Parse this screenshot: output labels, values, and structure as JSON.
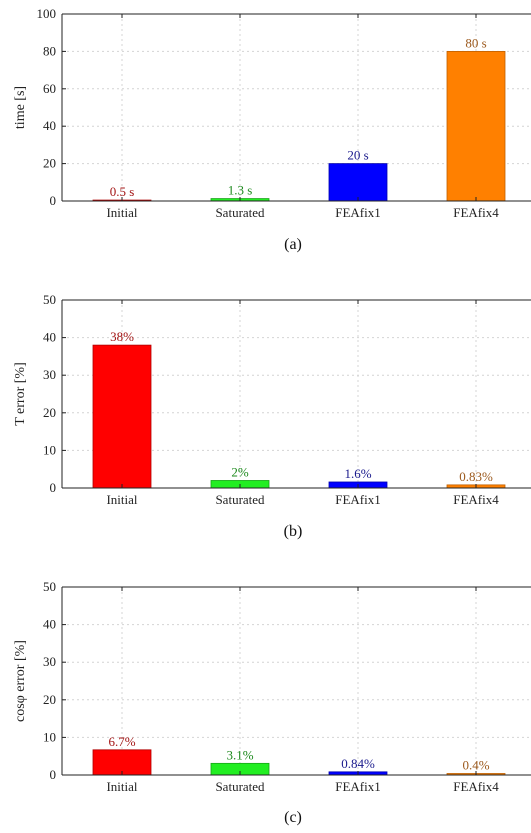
{
  "chart_data": [
    {
      "type": "bar",
      "categories": [
        "Initial",
        "Saturated",
        "FEAfix1",
        "FEAfix4"
      ],
      "values": [
        0.5,
        1.3,
        20,
        80
      ],
      "data_labels": [
        "0.5 s",
        "1.3 s",
        "20 s",
        "80 s"
      ],
      "ylabel": "time [s]",
      "ylim": [
        0,
        100
      ],
      "yticks": [
        "0",
        "20",
        "40",
        "60",
        "80",
        "100"
      ],
      "caption": "(a)",
      "grid": true
    },
    {
      "type": "bar",
      "categories": [
        "Initial",
        "Saturated",
        "FEAfix1",
        "FEAfix4"
      ],
      "values": [
        38,
        2,
        1.6,
        0.83
      ],
      "data_labels": [
        "38%",
        "2%",
        "1.6%",
        "0.83%"
      ],
      "ylabel": "T error [%]",
      "ylim": [
        0,
        50
      ],
      "yticks": [
        "0",
        "10",
        "20",
        "30",
        "40",
        "50"
      ],
      "caption": "(b)",
      "grid": true
    },
    {
      "type": "bar",
      "categories": [
        "Initial",
        "Saturated",
        "FEAfix1",
        "FEAfix4"
      ],
      "values": [
        6.7,
        3.1,
        0.84,
        0.4
      ],
      "data_labels": [
        "6.7%",
        "3.1%",
        "0.84%",
        "0.4%"
      ],
      "ylabel": "cosφ error [%]",
      "ylim": [
        0,
        50
      ],
      "yticks": [
        "0",
        "10",
        "20",
        "30",
        "40",
        "50"
      ],
      "caption": "(c)",
      "grid": true
    }
  ],
  "colors": {
    "bars": [
      "#ff0000",
      "#22ee22",
      "#0000ff",
      "#ff8000"
    ],
    "labels": [
      "#a31515",
      "#1e8a1e",
      "#1a1a8c",
      "#9c5a1e"
    ],
    "bar_stroke": [
      "#b00000",
      "#17a617",
      "#0000b0",
      "#c06000"
    ]
  }
}
